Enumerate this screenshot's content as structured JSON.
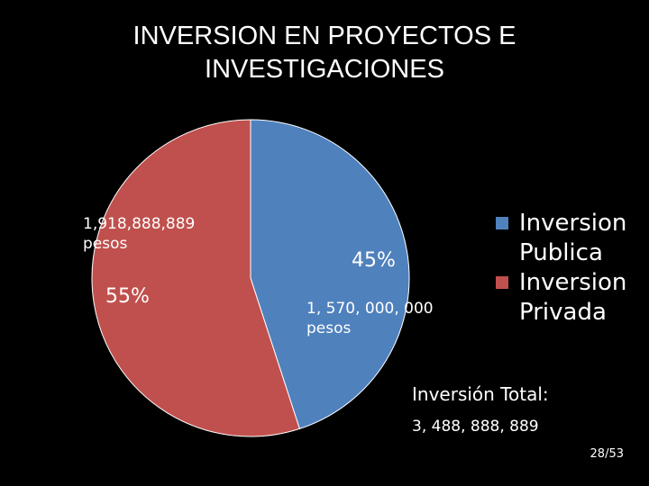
{
  "chart_data": {
    "type": "pie",
    "title_lines": [
      "INVERSION EN PROYECTOS E",
      "INVESTIGACIONES"
    ],
    "slices": [
      {
        "name": "Inversion Publica",
        "value": 45,
        "percent_label": "45%",
        "amount_label": "1, 570, 000, 000 pesos",
        "color": "#4f81bd"
      },
      {
        "name": "Inversion Privada",
        "value": 55,
        "percent_label": "55%",
        "amount_label": "1,918,888,889 pesos",
        "color": "#c0504d"
      }
    ],
    "legend_position": "right"
  },
  "total": {
    "label": "Inversión Total:",
    "value": "3, 488, 888, 889"
  },
  "page_number": "28/53"
}
